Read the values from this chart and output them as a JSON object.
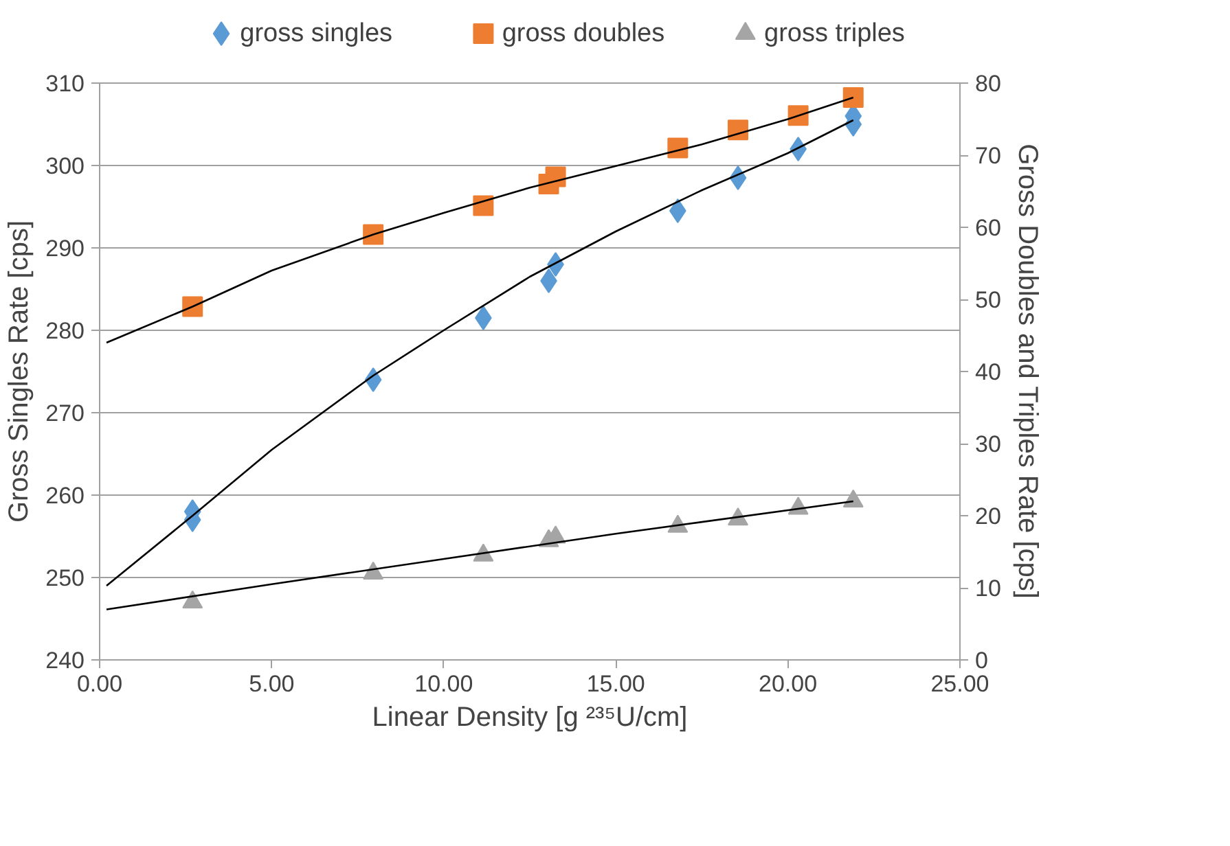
{
  "chart_data": {
    "type": "scatter",
    "xlabel": "Linear Density [g ²³⁵U/cm]",
    "ylabel": "Gross Singles Rate [cps]",
    "y2label": "Gross Doubles and Triples Rate [cps]",
    "x": [
      2.7,
      2.7,
      7.95,
      11.15,
      13.05,
      13.25,
      16.8,
      18.55,
      20.3,
      21.9,
      21.9
    ],
    "series": [
      {
        "name": "gross singles",
        "color": "#5b9bd5",
        "marker": "diamond",
        "values": [
          258,
          257,
          274,
          281.5,
          286,
          288,
          294.5,
          298.5,
          302,
          305,
          306
        ]
      },
      {
        "name": "gross doubles",
        "color": "#ed7d31",
        "marker": "square",
        "axis": "y2",
        "x": [
          2.7,
          7.95,
          11.15,
          13.05,
          13.25,
          16.8,
          18.55,
          20.3,
          21.9
        ],
        "values": [
          49,
          59,
          63,
          66,
          67,
          71,
          73.5,
          75.5,
          78
        ]
      },
      {
        "name": "gross triples",
        "color": "#a5a5a5",
        "marker": "triangle",
        "axis": "y2",
        "x": [
          2.7,
          7.95,
          11.15,
          13.05,
          13.25,
          16.8,
          18.55,
          20.3,
          21.9
        ],
        "values": [
          8,
          12,
          14.5,
          16.5,
          17,
          18.5,
          19.5,
          21,
          22
        ]
      },
      {
        "type": "line",
        "color": "#000000",
        "marker": "none",
        "x": [
          0.2,
          2.7,
          5,
          7.95,
          10,
          12.5,
          15,
          17.5,
          20,
          21.9
        ],
        "values": [
          249,
          257.5,
          265.5,
          274.5,
          280,
          286.5,
          292,
          297,
          301.5,
          305.5
        ]
      },
      {
        "type": "line",
        "color": "#000000",
        "marker": "none",
        "axis": "y2",
        "x": [
          0.2,
          2.7,
          5,
          7.95,
          10,
          12.5,
          15,
          17.5,
          20,
          21.9
        ],
        "values": [
          44,
          49,
          54,
          59,
          62,
          65.5,
          68.5,
          71.5,
          75,
          78
        ]
      },
      {
        "type": "line",
        "color": "#000000",
        "marker": "none",
        "axis": "y2",
        "x": [
          0.2,
          5,
          10,
          15,
          21.9
        ],
        "values": [
          7,
          10.5,
          14,
          17.5,
          22
        ]
      }
    ],
    "xlim": [
      0,
      25
    ],
    "xticks": [
      {
        "value": 0,
        "label": "0.00"
      },
      {
        "value": 5,
        "label": "5.00"
      },
      {
        "value": 10,
        "label": "10.00"
      },
      {
        "value": 15,
        "label": "15.00"
      },
      {
        "value": 20,
        "label": "20.00"
      },
      {
        "value": 25,
        "label": "25.00"
      }
    ],
    "ylim": [
      240,
      310
    ],
    "yticks": [
      240,
      250,
      260,
      270,
      280,
      290,
      300,
      310
    ],
    "y2lim": [
      0,
      80
    ],
    "y2ticks": [
      0,
      10,
      20,
      30,
      40,
      50,
      60,
      70,
      80
    ],
    "grid": "y",
    "legend": "top"
  }
}
